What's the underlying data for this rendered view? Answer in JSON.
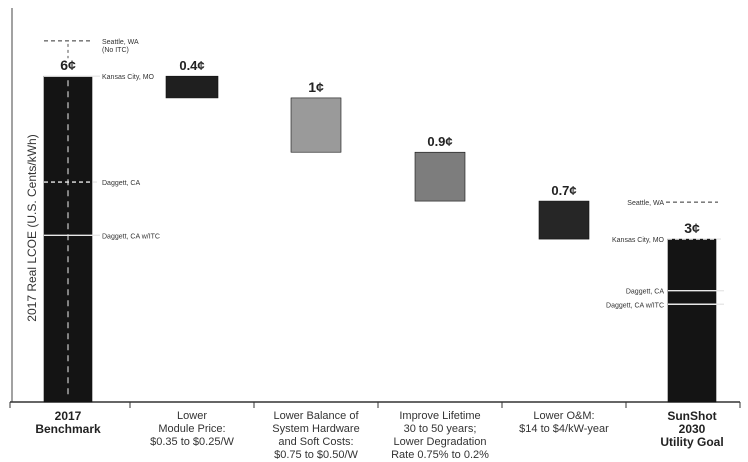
{
  "chart_data": {
    "type": "bar",
    "subtype": "waterfall",
    "ylabel": "2017 Real LCOE (U.S. Cents/kWh)",
    "ylim": [
      0,
      6.8
    ],
    "grid": false,
    "categories": [
      "2017\nBenchmark",
      "Lower\nModule Price:\n$0.35 to $0.25/W",
      "Lower Balance of\nSystem Hardware\nand Soft Costs:\n$0.75 to $0.50/W",
      "Improve Lifetime\n30 to 50 years;\nLower Degradation\nRate 0.75% to 0.2%",
      "Lower O&M:\n$14 to $4/kW-year",
      "SunShot\n2030\nUtility Goal"
    ],
    "bars": [
      {
        "category_index": 0,
        "kind": "total",
        "start": 0,
        "end": 6.0,
        "label": "6¢"
      },
      {
        "category_index": 1,
        "kind": "decrease",
        "start": 6.0,
        "end": 5.6,
        "label": "0.4¢"
      },
      {
        "category_index": 2,
        "kind": "decrease",
        "start": 5.6,
        "end": 4.6,
        "label": "1¢"
      },
      {
        "category_index": 3,
        "kind": "decrease",
        "start": 4.6,
        "end": 3.7,
        "label": "0.9¢"
      },
      {
        "category_index": 4,
        "kind": "decrease",
        "start": 3.7,
        "end": 3.0,
        "label": "0.7¢"
      },
      {
        "category_index": 5,
        "kind": "total",
        "start": 0,
        "end": 3.0,
        "label": "3¢"
      }
    ],
    "reference_lines": [
      {
        "category_index": 0,
        "value": 6.65,
        "label": "Seattle, WA\n(No ITC)",
        "style": "dashed"
      },
      {
        "category_index": 0,
        "value": 6.0,
        "label": "Kansas City, MO",
        "style": "solid"
      },
      {
        "category_index": 0,
        "value": 4.05,
        "label": "Daggett, CA",
        "style": "dashed"
      },
      {
        "category_index": 0,
        "value": 3.07,
        "label": "Daggett, CA w/ITC",
        "style": "solid"
      },
      {
        "category_index": 5,
        "value": 3.68,
        "label": "Seattle, WA",
        "style": "dashed"
      },
      {
        "category_index": 5,
        "value": 3.0,
        "label": "Kansas City, MO",
        "style": "dashed"
      },
      {
        "category_index": 5,
        "value": 2.05,
        "label": "Daggett, CA",
        "style": "solid"
      },
      {
        "category_index": 5,
        "value": 1.8,
        "label": "Daggett, CA w/ITC",
        "style": "solid"
      }
    ],
    "colors": {
      "total": "#141414",
      "step1": "#1f1f1f",
      "step2": "#9a9a9a",
      "step3": "#7d7d7d",
      "step4": "#262626",
      "reference_line": "#e8e8e8"
    }
  }
}
